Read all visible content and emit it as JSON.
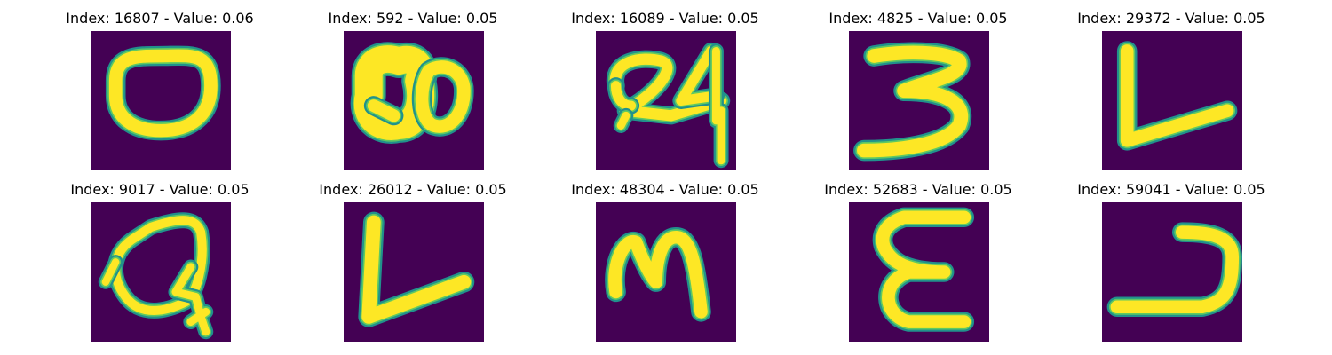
{
  "colors": {
    "background": "#440154",
    "stroke_core": "#fde725",
    "stroke_mid": "#5ec962",
    "stroke_edge": "#21918c"
  },
  "panels": [
    {
      "title": "Index: 16807 - Value: 0.06",
      "glyph": "glyph-o"
    },
    {
      "title": "Index: 592 - Value: 0.05",
      "glyph": "glyph-blob"
    },
    {
      "title": "Index: 16089 - Value: 0.05",
      "glyph": "glyph-24"
    },
    {
      "title": "Index: 4825 - Value: 0.05",
      "glyph": "glyph-3"
    },
    {
      "title": "Index: 29372 - Value: 0.05",
      "glyph": "glyph-l"
    },
    {
      "title": "Index: 9017 - Value: 0.05",
      "glyph": "glyph-q"
    },
    {
      "title": "Index: 26012 - Value: 0.05",
      "glyph": "glyph-l2"
    },
    {
      "title": "Index: 48304 - Value: 0.05",
      "glyph": "glyph-m"
    },
    {
      "title": "Index: 52683 - Value: 0.05",
      "glyph": "glyph-e"
    },
    {
      "title": "Index: 59041 - Value: 0.05",
      "glyph": "glyph-u"
    }
  ]
}
